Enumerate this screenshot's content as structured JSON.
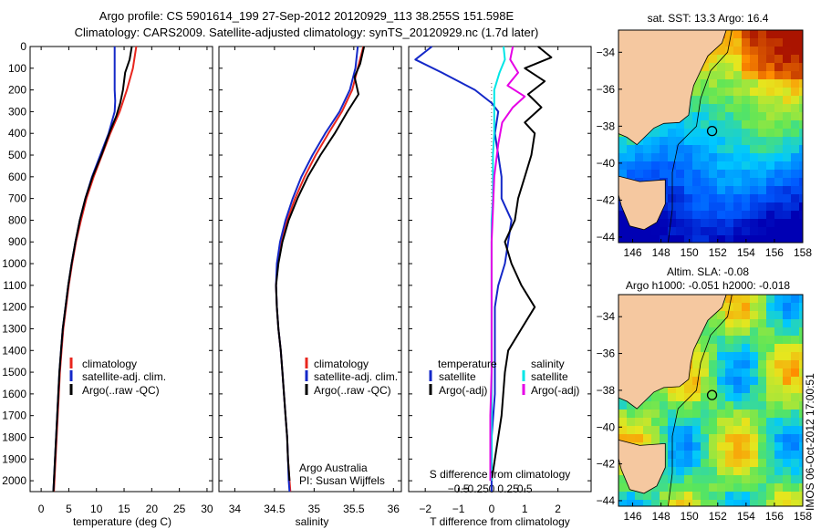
{
  "figure": {
    "title_line1": "Argo profile: CS 5901614_199 27-Sep-2012 20120929_113 38.255S 151.598E",
    "title_line2": "Climatology: CARS2009. Satellite-adjusted climatology: synTS_20120929.nc (1.7d later)",
    "footer_vertical": "IMOS 06-Oct-2012 17:00:51"
  },
  "colors": {
    "climatology": "#e8261e",
    "satellite": "#1428c8",
    "argo": "#000000",
    "sal_satellite": "#00e6e6",
    "sal_argo": "#e600e6",
    "land": "#f5c8a0"
  },
  "depth_axis": {
    "ylim": [
      0,
      2050
    ],
    "ticks": [
      0,
      100,
      200,
      300,
      400,
      500,
      600,
      700,
      800,
      900,
      1000,
      1100,
      1200,
      1300,
      1400,
      1500,
      1600,
      1700,
      1800,
      1900,
      2000
    ],
    "inverted": true
  },
  "chart_data": [
    {
      "type": "line",
      "panel": "temperature",
      "xlabel": "temperature (deg C)",
      "xlim": [
        -2,
        31
      ],
      "xticks": [
        0,
        5,
        10,
        15,
        20,
        25,
        30
      ],
      "legend": [
        "climatology",
        "satellite-adj. clim.",
        "Argo(..raw -QC)"
      ],
      "legend_loc": "lower-left",
      "series": [
        {
          "name": "climatology",
          "color": "climatology",
          "points": [
            [
              17.2,
              0
            ],
            [
              16.6,
              100
            ],
            [
              15.5,
              200
            ],
            [
              14.2,
              300
            ],
            [
              12.5,
              400
            ],
            [
              11.0,
              500
            ],
            [
              9.5,
              600
            ],
            [
              8.2,
              700
            ],
            [
              7.2,
              800
            ],
            [
              6.3,
              900
            ],
            [
              5.6,
              1000
            ],
            [
              5.0,
              1100
            ],
            [
              4.5,
              1200
            ],
            [
              4.0,
              1300
            ],
            [
              3.7,
              1400
            ],
            [
              3.4,
              1500
            ],
            [
              3.2,
              1600
            ],
            [
              3.0,
              1700
            ],
            [
              2.8,
              1800
            ],
            [
              2.6,
              1900
            ],
            [
              2.4,
              2000
            ],
            [
              2.3,
              2050
            ]
          ]
        },
        {
          "name": "satellite-adj. clim.",
          "color": "satellite",
          "points": [
            [
              13.3,
              0
            ],
            [
              13.3,
              100
            ],
            [
              13.3,
              200
            ],
            [
              13.4,
              250
            ],
            [
              13.3,
              300
            ],
            [
              12.2,
              400
            ],
            [
              10.7,
              500
            ],
            [
              9.2,
              600
            ],
            [
              8.0,
              700
            ],
            [
              7.0,
              800
            ],
            [
              6.2,
              900
            ],
            [
              5.5,
              1000
            ],
            [
              4.9,
              1100
            ],
            [
              4.4,
              1200
            ],
            [
              3.9,
              1300
            ],
            [
              3.6,
              1400
            ],
            [
              3.3,
              1500
            ],
            [
              3.1,
              1600
            ],
            [
              2.9,
              1700
            ],
            [
              2.7,
              1800
            ],
            [
              2.5,
              1900
            ],
            [
              2.3,
              2000
            ],
            [
              2.2,
              2050
            ]
          ]
        },
        {
          "name": "Argo(..raw -QC)",
          "color": "argo",
          "points": [
            [
              16.4,
              0
            ],
            [
              16.0,
              60
            ],
            [
              15.2,
              120
            ],
            [
              14.8,
              200
            ],
            [
              14.3,
              260
            ],
            [
              13.6,
              320
            ],
            [
              12.3,
              400
            ],
            [
              10.9,
              500
            ],
            [
              9.3,
              600
            ],
            [
              8.0,
              700
            ],
            [
              7.0,
              800
            ],
            [
              6.2,
              900
            ],
            [
              5.5,
              1000
            ],
            [
              4.9,
              1100
            ],
            [
              4.4,
              1200
            ],
            [
              3.9,
              1300
            ],
            [
              3.6,
              1400
            ],
            [
              3.3,
              1500
            ],
            [
              3.1,
              1600
            ],
            [
              2.9,
              1700
            ],
            [
              2.7,
              1800
            ],
            [
              2.5,
              1900
            ],
            [
              2.3,
              2000
            ],
            [
              2.2,
              2050
            ]
          ]
        }
      ]
    },
    {
      "type": "line",
      "panel": "salinity",
      "xlabel": "salinity",
      "xlim": [
        33.8,
        36.1
      ],
      "xticks": [
        34,
        34.5,
        35,
        35.5,
        36
      ],
      "xtick_labels": [
        "34",
        "34.5",
        "35",
        "35.5",
        "36"
      ],
      "legend": [
        "climatology",
        "satellite-adj. clim.",
        "Argo(..raw -QC)"
      ],
      "legend_loc": "lower-right",
      "annotation": [
        "Argo Australia",
        "PI: Susan Wijffels"
      ],
      "series": [
        {
          "name": "climatology",
          "color": "climatology",
          "points": [
            [
              35.62,
              0
            ],
            [
              35.55,
              100
            ],
            [
              35.48,
              200
            ],
            [
              35.35,
              300
            ],
            [
              35.18,
              400
            ],
            [
              35.02,
              500
            ],
            [
              34.88,
              600
            ],
            [
              34.76,
              700
            ],
            [
              34.66,
              800
            ],
            [
              34.58,
              900
            ],
            [
              34.54,
              1000
            ],
            [
              34.52,
              1100
            ],
            [
              34.53,
              1200
            ],
            [
              34.55,
              1300
            ],
            [
              34.58,
              1400
            ],
            [
              34.6,
              1500
            ],
            [
              34.62,
              1600
            ],
            [
              34.64,
              1700
            ],
            [
              34.66,
              1800
            ],
            [
              34.67,
              1900
            ],
            [
              34.69,
              2000
            ],
            [
              34.7,
              2050
            ]
          ]
        },
        {
          "name": "satellite-adj. clim.",
          "color": "satellite",
          "points": [
            [
              35.55,
              0
            ],
            [
              35.52,
              100
            ],
            [
              35.45,
              200
            ],
            [
              35.32,
              300
            ],
            [
              35.14,
              400
            ],
            [
              34.98,
              500
            ],
            [
              34.84,
              600
            ],
            [
              34.73,
              700
            ],
            [
              34.64,
              800
            ],
            [
              34.57,
              900
            ],
            [
              34.53,
              1000
            ],
            [
              34.52,
              1100
            ],
            [
              34.53,
              1200
            ],
            [
              34.55,
              1300
            ],
            [
              34.58,
              1400
            ],
            [
              34.6,
              1500
            ],
            [
              34.62,
              1600
            ],
            [
              34.64,
              1700
            ],
            [
              34.66,
              1800
            ],
            [
              34.67,
              1900
            ],
            [
              34.68,
              2000
            ],
            [
              34.69,
              2050
            ]
          ]
        },
        {
          "name": "Argo(..raw -QC)",
          "color": "argo",
          "points": [
            [
              35.63,
              0
            ],
            [
              35.58,
              80
            ],
            [
              35.51,
              140
            ],
            [
              35.56,
              220
            ],
            [
              35.42,
              300
            ],
            [
              35.26,
              400
            ],
            [
              35.08,
              500
            ],
            [
              34.92,
              600
            ],
            [
              34.79,
              700
            ],
            [
              34.68,
              800
            ],
            [
              34.6,
              900
            ],
            [
              34.55,
              1000
            ],
            [
              34.52,
              1100
            ],
            [
              34.53,
              1200
            ],
            [
              34.55,
              1300
            ],
            [
              34.58,
              1400
            ],
            [
              34.6,
              1500
            ],
            [
              34.62,
              1600
            ],
            [
              34.64,
              1700
            ],
            [
              34.66,
              1800
            ],
            [
              34.67,
              1900
            ],
            [
              34.69,
              2000
            ]
          ]
        }
      ]
    },
    {
      "type": "line",
      "panel": "difference",
      "xlabel": "T difference from climatology",
      "xlabel_top": "S difference from climatology",
      "xlim": [
        -2.5,
        3.0
      ],
      "xticks": [
        -2,
        -1,
        0,
        1,
        2
      ],
      "xtick_labels": [
        "−2",
        "−1",
        "0",
        "1",
        "2"
      ],
      "sticks_labels": [
        "−0.5",
        "−0.25",
        "0",
        "0.25",
        "0.5"
      ],
      "legend_temperature_title": "temperature",
      "legend_salinity_title": "salinity",
      "legend_temperature": [
        "satellite",
        "Argo(-adj)"
      ],
      "legend_salinity": [
        "satellite",
        "Argo(-adj)"
      ],
      "series": [
        {
          "name": "temperature satellite",
          "color": "satellite",
          "points": [
            [
              -1.8,
              0
            ],
            [
              -2.3,
              60
            ],
            [
              -1.5,
              120
            ],
            [
              -0.5,
              200
            ],
            [
              0.0,
              260
            ],
            [
              0.2,
              300
            ],
            [
              0.1,
              400
            ],
            [
              0.2,
              500
            ],
            [
              0.3,
              600
            ],
            [
              0.3,
              700
            ],
            [
              0.6,
              800
            ],
            [
              0.5,
              900
            ],
            [
              0.4,
              1000
            ],
            [
              0.2,
              1100
            ],
            [
              0.1,
              1200
            ],
            [
              0.1,
              1400
            ],
            [
              0.1,
              1600
            ],
            [
              0.0,
              1800
            ],
            [
              0.0,
              2000
            ],
            [
              0.0,
              2050
            ]
          ]
        },
        {
          "name": "temperature Argo(-adj)",
          "color": "argo",
          "points": [
            [
              1.4,
              0
            ],
            [
              1.8,
              50
            ],
            [
              1.0,
              100
            ],
            [
              1.6,
              160
            ],
            [
              1.1,
              220
            ],
            [
              1.5,
              280
            ],
            [
              1.0,
              350
            ],
            [
              1.3,
              400
            ],
            [
              1.2,
              500
            ],
            [
              1.0,
              600
            ],
            [
              0.8,
              700
            ],
            [
              0.7,
              800
            ],
            [
              0.4,
              900
            ],
            [
              0.6,
              1000
            ],
            [
              0.9,
              1100
            ],
            [
              1.3,
              1200
            ],
            [
              0.9,
              1300
            ],
            [
              0.5,
              1400
            ],
            [
              0.4,
              1500
            ],
            [
              0.3,
              1700
            ],
            [
              0.1,
              1900
            ],
            [
              0.0,
              2000
            ]
          ]
        },
        {
          "name": "salinity satellite",
          "color": "sal_satellite",
          "points": [
            [
              0.09,
              0
            ],
            [
              0.1,
              60
            ],
            [
              0.06,
              120
            ],
            [
              0.02,
              200
            ],
            [
              0.02,
              300
            ],
            [
              0.02,
              400
            ],
            [
              0.01,
              500
            ],
            [
              0.01,
              600
            ],
            [
              0.01,
              700
            ],
            [
              0.0,
              800
            ],
            [
              0.0,
              1000
            ],
            [
              0.0,
              1200
            ],
            [
              0.0,
              1400
            ],
            [
              0.0,
              1600
            ],
            [
              0.0,
              1800
            ],
            [
              0.0,
              2000
            ]
          ]
        },
        {
          "name": "salinity Argo(-adj)",
          "color": "sal_argo",
          "points": [
            [
              0.16,
              0
            ],
            [
              0.14,
              60
            ],
            [
              0.2,
              120
            ],
            [
              0.12,
              180
            ],
            [
              0.25,
              230
            ],
            [
              0.16,
              280
            ],
            [
              0.08,
              350
            ],
            [
              0.05,
              450
            ],
            [
              0.02,
              600
            ],
            [
              0.01,
              750
            ],
            [
              0.0,
              900
            ],
            [
              0.0,
              1100
            ],
            [
              0.0,
              1300
            ],
            [
              0.0,
              1500
            ],
            [
              -0.01,
              1700
            ],
            [
              -0.01,
              1900
            ],
            [
              -0.01,
              2000
            ]
          ]
        }
      ]
    }
  ],
  "maps": [
    {
      "id": "sst",
      "title": "sat. SST: 13.3 Argo: 16.4",
      "xlim": [
        145,
        158
      ],
      "ylim": [
        -44.3,
        -32.8
      ],
      "xticks": [
        146,
        148,
        150,
        152,
        154,
        156,
        158
      ],
      "yticks": [
        -34,
        -36,
        -38,
        -40,
        -42,
        -44
      ],
      "float_lon": 151.6,
      "float_lat": -38.26
    },
    {
      "id": "sla",
      "title_line1": "Altim. SLA: -0.08",
      "title_line2": "Argo h1000: -0.051 h2000: -0.018",
      "xlim": [
        145,
        158
      ],
      "ylim": [
        -44.3,
        -32.8
      ],
      "xticks": [
        146,
        148,
        150,
        152,
        154,
        156,
        158
      ],
      "yticks": [
        -34,
        -36,
        -38,
        -40,
        -42,
        -44
      ],
      "float_lon": 151.6,
      "float_lat": -38.26
    }
  ]
}
